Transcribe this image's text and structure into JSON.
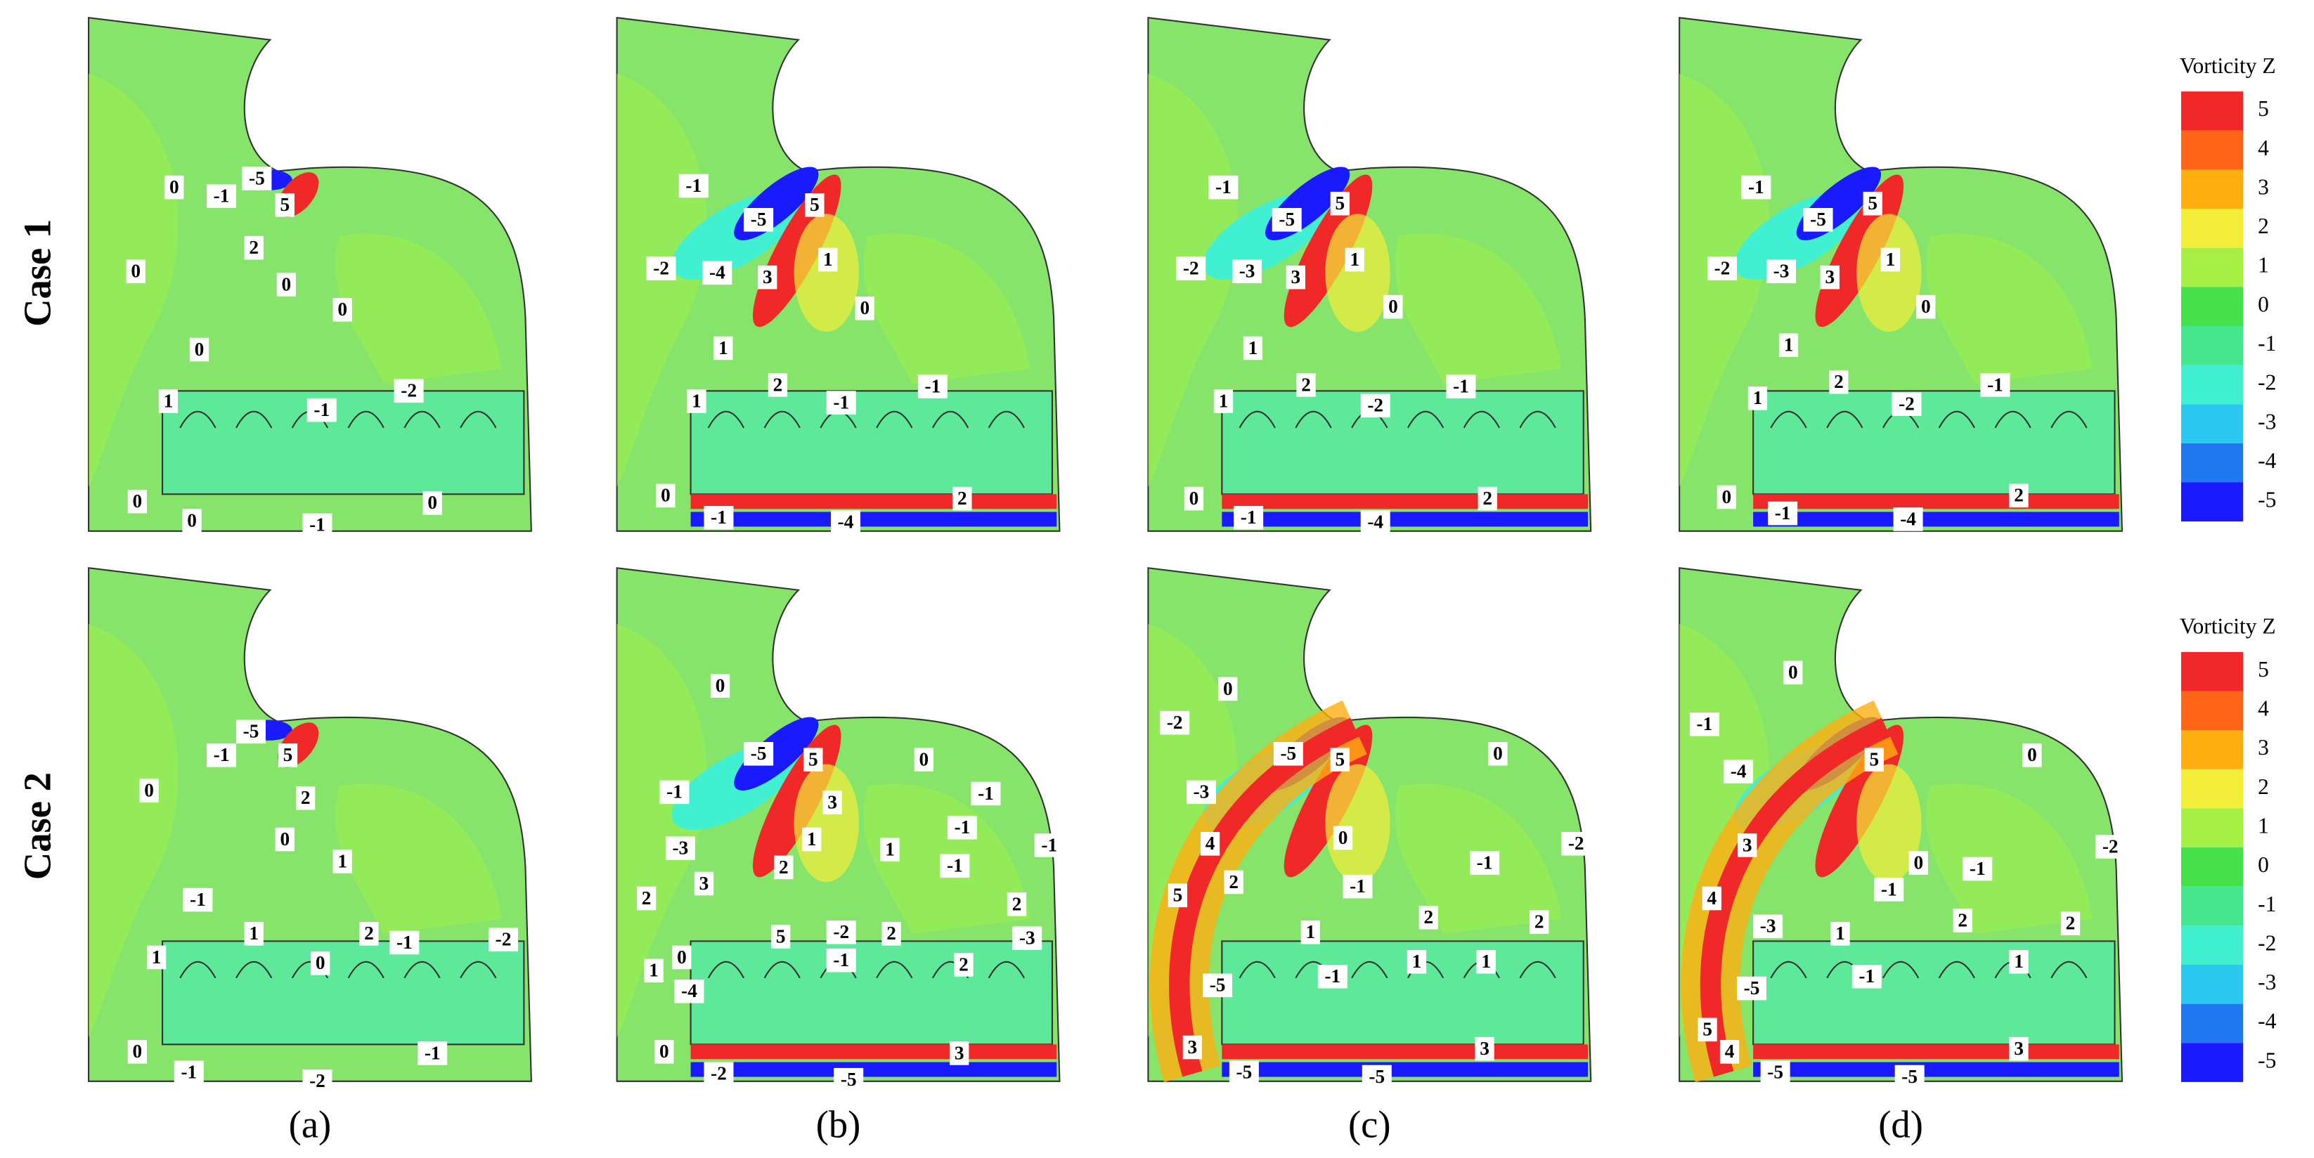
{
  "row_labels": [
    "Case 1",
    "Case 2"
  ],
  "panel_labels": [
    "(a)",
    "(b)",
    "(c)",
    "(d)"
  ],
  "legends": [
    {
      "title": "Vorticity Z",
      "ticks": [
        5,
        4,
        3,
        2,
        1,
        0,
        -1,
        -2,
        -3,
        -4,
        -5
      ],
      "colors": [
        "#f02828",
        "#ff6418",
        "#ffae10",
        "#f2ee3a",
        "#a6f046",
        "#46e04a",
        "#46e68c",
        "#40f0d0",
        "#2cc8f4",
        "#2078f0",
        "#1a1aff"
      ]
    },
    {
      "title": "Vorticity Z",
      "ticks": [
        5,
        4,
        3,
        2,
        1,
        0,
        -1,
        -2,
        -3,
        -4,
        -5
      ],
      "colors": [
        "#f02828",
        "#ff6418",
        "#ffae10",
        "#f2ee3a",
        "#a6f046",
        "#46e04a",
        "#46e68c",
        "#40f0d0",
        "#2cc8f4",
        "#2078f0",
        "#1a1aff"
      ]
    }
  ],
  "panels": [
    {
      "contour_labels": [
        0,
        -1,
        -5,
        5,
        2,
        0,
        0,
        0,
        0,
        1,
        -1,
        -2,
        0,
        0,
        -1,
        0
      ]
    },
    {
      "contour_labels": [
        -1,
        -5,
        5,
        -2,
        -4,
        3,
        1,
        0,
        1,
        2,
        -1,
        -1,
        1,
        0,
        -1,
        -4,
        2
      ]
    },
    {
      "contour_labels": [
        -1,
        -5,
        5,
        -2,
        -3,
        3,
        1,
        0,
        1,
        2,
        -2,
        -1,
        1,
        0,
        -1,
        -4,
        2
      ]
    },
    {
      "contour_labels": [
        -1,
        -5,
        5,
        -2,
        -3,
        3,
        1,
        0,
        1,
        2,
        -2,
        -1,
        1,
        0,
        -1,
        -4,
        2
      ]
    },
    {
      "contour_labels": [
        -5,
        -1,
        5,
        2,
        0,
        0,
        1,
        -1,
        1,
        2,
        -1,
        -2,
        1,
        0,
        0,
        -1,
        -2,
        -1
      ]
    },
    {
      "contour_labels": [
        0,
        -5,
        5,
        0,
        -1,
        3,
        -1,
        -3,
        1,
        1,
        -1,
        -1,
        2,
        -1,
        3,
        2,
        2,
        5,
        -2,
        2,
        -3,
        0,
        -4,
        1,
        -1,
        2,
        0,
        -2,
        -5,
        3
      ]
    },
    {
      "contour_labels": [
        0,
        -2,
        -5,
        5,
        0,
        -3,
        4,
        0,
        -1,
        -2,
        5,
        2,
        -1,
        2,
        2,
        1,
        -1,
        1,
        1,
        -5,
        3,
        -5,
        -5,
        3
      ]
    },
    {
      "contour_labels": [
        0,
        -1,
        -4,
        5,
        0,
        3,
        0,
        -1,
        -1,
        -2,
        4,
        2,
        2,
        -3,
        1,
        -1,
        1,
        -5,
        5,
        4,
        -5,
        -5,
        3
      ]
    }
  ]
}
